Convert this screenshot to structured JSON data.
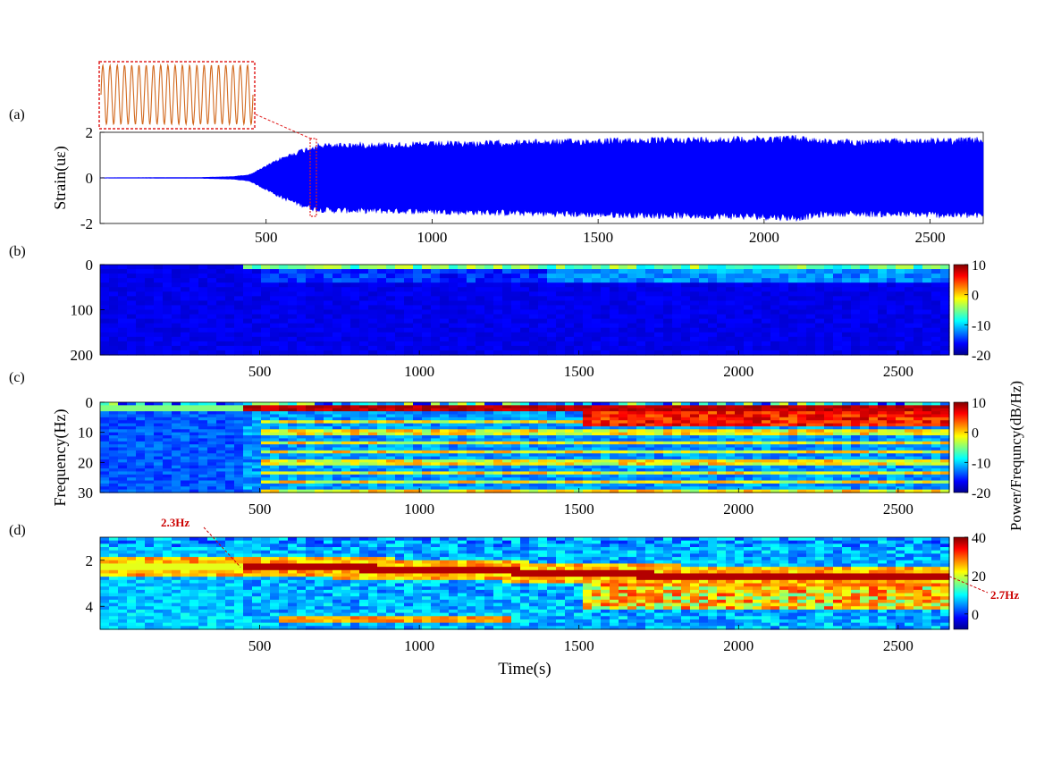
{
  "chart_data": [
    {
      "panel": "(a)",
      "type": "line",
      "ylabel": "Strain(uε)",
      "xlim": [
        0,
        2660
      ],
      "ylim": [
        -2,
        2
      ],
      "yticks": [
        2,
        0,
        -2
      ],
      "xticks": [
        500,
        1000,
        1500,
        2000,
        2500
      ],
      "series": [
        {
          "color": "#0000ff",
          "envelope": {
            "t": [
              0,
              300,
              400,
              450,
              500,
              550,
              600,
              650,
              700,
              1000,
              1500,
              2000,
              2100,
              2200,
              2500,
              2660
            ],
            "amp": [
              0.01,
              0.02,
              0.06,
              0.15,
              0.55,
              0.95,
              1.25,
              1.5,
              1.55,
              1.6,
              1.75,
              1.85,
              1.9,
              1.7,
              1.75,
              1.8
            ]
          }
        }
      ],
      "inset": {
        "type": "line",
        "color": "#d2691e",
        "cycles": 21,
        "zoom_window": [
          645,
          660
        ]
      }
    },
    {
      "panel": "(b)",
      "type": "heatmap",
      "xlim": [
        0,
        2660
      ],
      "ylim": [
        0,
        200
      ],
      "yticks": [
        0,
        100,
        200
      ],
      "xticks": [
        500,
        1000,
        1500,
        2000,
        2500
      ],
      "colorbar": {
        "ticks": [
          10,
          0,
          -10,
          -20
        ],
        "range": [
          -20,
          10
        ]
      }
    },
    {
      "panel": "(c)",
      "type": "heatmap",
      "xlim": [
        0,
        2660
      ],
      "ylim": [
        0,
        30
      ],
      "yticks": [
        0,
        10,
        20,
        30
      ],
      "xticks": [
        500,
        1000,
        1500,
        2000,
        2500
      ],
      "colorbar": {
        "ticks": [
          10,
          0,
          -10,
          -20
        ],
        "range": [
          -20,
          10
        ]
      }
    },
    {
      "panel": "(d)",
      "type": "heatmap",
      "xlim": [
        0,
        2660
      ],
      "ylim": [
        1,
        5
      ],
      "yticks": [
        2,
        4
      ],
      "xticks": [
        500,
        1000,
        1500,
        2000,
        2500
      ],
      "colorbar": {
        "ticks": [
          40,
          20,
          0
        ],
        "range": [
          -8,
          40
        ]
      },
      "dominant_frequency": {
        "t": [
          0,
          400,
          450,
          500,
          800,
          1200,
          1500,
          2000,
          2660
        ],
        "f": [
          2.3,
          2.3,
          2.3,
          2.3,
          2.35,
          2.45,
          2.6,
          2.7,
          2.7
        ]
      },
      "annotations": [
        {
          "text": "2.3Hz",
          "t": 440,
          "f": 2.3
        },
        {
          "text": "2.7Hz",
          "t": 2660,
          "f": 2.7
        }
      ]
    }
  ],
  "labels": {
    "panel_a": "(a)",
    "panel_b": "(b)",
    "panel_c": "(c)",
    "panel_d": "(d)",
    "ylabel_strain": "Strain(uε)",
    "ylabel_freq": "Frequency(Hz)",
    "colorbar_label": "Power/Frequncy(dB/Hz)",
    "xlabel": "Time(s)"
  },
  "colors": {
    "signal": "#0000ff",
    "inset_line": "#d2691e",
    "annotation": "#cc0000"
  }
}
